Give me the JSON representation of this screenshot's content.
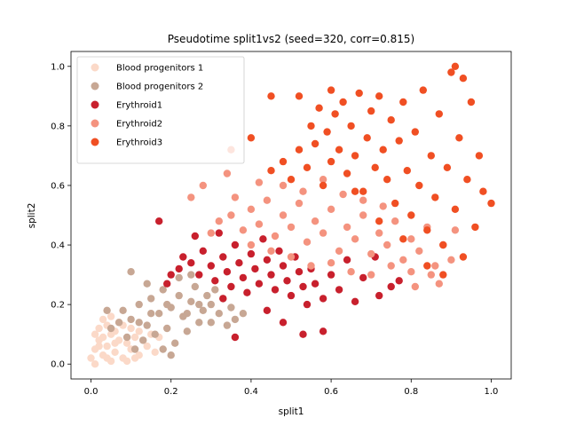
{
  "chart_data": {
    "type": "scatter",
    "title": "Pseudotime split1vs2 (seed=320, corr=0.815)",
    "xlabel": "split1",
    "ylabel": "split2",
    "xlim": [
      -0.05,
      1.05
    ],
    "ylim": [
      -0.05,
      1.05
    ],
    "xticks": [
      "0.0",
      "0.2",
      "0.4",
      "0.6",
      "0.8",
      "1.0"
    ],
    "yticks": [
      "0.0",
      "0.2",
      "0.4",
      "0.6",
      "0.8",
      "1.0"
    ],
    "grid": false,
    "legend_position": "top-left",
    "series": [
      {
        "name": "Blood progenitors 1",
        "color": "#fbd9c8",
        "points": [
          [
            0.0,
            0.02
          ],
          [
            0.01,
            0.05
          ],
          [
            0.02,
            0.08
          ],
          [
            0.03,
            0.03
          ],
          [
            0.04,
            0.06
          ],
          [
            0.05,
            0.1
          ],
          [
            0.06,
            0.04
          ],
          [
            0.07,
            0.08
          ],
          [
            0.02,
            0.12
          ],
          [
            0.08,
            0.13
          ],
          [
            0.05,
            0.01
          ],
          [
            0.09,
            0.07
          ],
          [
            0.03,
            0.15
          ],
          [
            0.06,
            0.11
          ],
          [
            0.1,
            0.05
          ],
          [
            0.11,
            0.09
          ],
          [
            0.04,
            0.02
          ],
          [
            0.07,
            0.14
          ],
          [
            0.12,
            0.03
          ],
          [
            0.01,
            0.1
          ],
          [
            0.13,
            0.08
          ],
          [
            0.08,
            0.02
          ],
          [
            0.02,
            0.06
          ],
          [
            0.1,
            0.12
          ],
          [
            0.14,
            0.06
          ],
          [
            0.05,
            0.16
          ],
          [
            0.09,
            0.01
          ],
          [
            0.15,
            0.1
          ],
          [
            0.03,
            0.09
          ],
          [
            0.06,
            0.07
          ],
          [
            0.12,
            0.11
          ],
          [
            0.01,
            0.0
          ],
          [
            0.16,
            0.04
          ],
          [
            0.04,
            0.13
          ],
          [
            0.11,
            0.02
          ],
          [
            0.17,
            0.09
          ]
        ]
      },
      {
        "name": "Blood progenitors 2",
        "color": "#c7a794",
        "points": [
          [
            0.05,
            0.12
          ],
          [
            0.08,
            0.18
          ],
          [
            0.1,
            0.15
          ],
          [
            0.12,
            0.2
          ],
          [
            0.14,
            0.13
          ],
          [
            0.15,
            0.22
          ],
          [
            0.17,
            0.17
          ],
          [
            0.18,
            0.25
          ],
          [
            0.2,
            0.19
          ],
          [
            0.22,
            0.23
          ],
          [
            0.23,
            0.16
          ],
          [
            0.25,
            0.21
          ],
          [
            0.26,
            0.26
          ],
          [
            0.28,
            0.18
          ],
          [
            0.29,
            0.23
          ],
          [
            0.3,
            0.2
          ],
          [
            0.32,
            0.17
          ],
          [
            0.33,
            0.22
          ],
          [
            0.35,
            0.19
          ],
          [
            0.36,
            0.15
          ],
          [
            0.13,
            0.08
          ],
          [
            0.16,
            0.1
          ],
          [
            0.19,
            0.12
          ],
          [
            0.21,
            0.07
          ],
          [
            0.24,
            0.11
          ],
          [
            0.27,
            0.14
          ],
          [
            0.09,
            0.09
          ],
          [
            0.11,
            0.05
          ],
          [
            0.18,
            0.05
          ],
          [
            0.2,
            0.03
          ],
          [
            0.04,
            0.18
          ],
          [
            0.07,
            0.14
          ],
          [
            0.1,
            0.31
          ],
          [
            0.14,
            0.27
          ],
          [
            0.22,
            0.29
          ],
          [
            0.25,
            0.3
          ],
          [
            0.31,
            0.25
          ],
          [
            0.34,
            0.13
          ],
          [
            0.38,
            0.17
          ],
          [
            0.15,
            0.17
          ],
          [
            0.19,
            0.2
          ],
          [
            0.24,
            0.17
          ],
          [
            0.12,
            0.14
          ],
          [
            0.27,
            0.2
          ],
          [
            0.3,
            0.14
          ]
        ]
      },
      {
        "name": "Erythroid1",
        "color": "#c8202d",
        "points": [
          [
            0.17,
            0.48
          ],
          [
            0.2,
            0.3
          ],
          [
            0.22,
            0.32
          ],
          [
            0.25,
            0.34
          ],
          [
            0.27,
            0.3
          ],
          [
            0.28,
            0.38
          ],
          [
            0.3,
            0.33
          ],
          [
            0.31,
            0.28
          ],
          [
            0.33,
            0.36
          ],
          [
            0.34,
            0.31
          ],
          [
            0.35,
            0.26
          ],
          [
            0.36,
            0.4
          ],
          [
            0.37,
            0.34
          ],
          [
            0.38,
            0.29
          ],
          [
            0.39,
            0.24
          ],
          [
            0.4,
            0.37
          ],
          [
            0.41,
            0.32
          ],
          [
            0.42,
            0.27
          ],
          [
            0.43,
            0.42
          ],
          [
            0.44,
            0.35
          ],
          [
            0.45,
            0.3
          ],
          [
            0.46,
            0.25
          ],
          [
            0.47,
            0.38
          ],
          [
            0.48,
            0.33
          ],
          [
            0.49,
            0.28
          ],
          [
            0.5,
            0.23
          ],
          [
            0.51,
            0.36
          ],
          [
            0.52,
            0.31
          ],
          [
            0.53,
            0.26
          ],
          [
            0.54,
            0.2
          ],
          [
            0.55,
            0.32
          ],
          [
            0.56,
            0.27
          ],
          [
            0.58,
            0.22
          ],
          [
            0.6,
            0.3
          ],
          [
            0.62,
            0.25
          ],
          [
            0.64,
            0.35
          ],
          [
            0.66,
            0.21
          ],
          [
            0.68,
            0.29
          ],
          [
            0.72,
            0.23
          ],
          [
            0.75,
            0.26
          ],
          [
            0.77,
            0.28
          ],
          [
            0.71,
            0.36
          ],
          [
            0.48,
            0.14
          ],
          [
            0.53,
            0.1
          ],
          [
            0.58,
            0.11
          ],
          [
            0.36,
            0.09
          ],
          [
            0.44,
            0.18
          ],
          [
            0.32,
            0.44
          ],
          [
            0.26,
            0.43
          ],
          [
            0.23,
            0.36
          ],
          [
            0.19,
            0.27
          ],
          [
            0.33,
            0.22
          ]
        ]
      },
      {
        "name": "Erythroid2",
        "color": "#f4937f",
        "points": [
          [
            0.3,
            0.44
          ],
          [
            0.32,
            0.48
          ],
          [
            0.35,
            0.5
          ],
          [
            0.38,
            0.45
          ],
          [
            0.4,
            0.52
          ],
          [
            0.42,
            0.47
          ],
          [
            0.44,
            0.55
          ],
          [
            0.46,
            0.43
          ],
          [
            0.48,
            0.5
          ],
          [
            0.5,
            0.46
          ],
          [
            0.52,
            0.54
          ],
          [
            0.54,
            0.41
          ],
          [
            0.56,
            0.48
          ],
          [
            0.58,
            0.44
          ],
          [
            0.6,
            0.52
          ],
          [
            0.62,
            0.38
          ],
          [
            0.64,
            0.46
          ],
          [
            0.66,
            0.42
          ],
          [
            0.68,
            0.5
          ],
          [
            0.7,
            0.37
          ],
          [
            0.72,
            0.44
          ],
          [
            0.74,
            0.4
          ],
          [
            0.76,
            0.48
          ],
          [
            0.78,
            0.35
          ],
          [
            0.8,
            0.42
          ],
          [
            0.82,
            0.38
          ],
          [
            0.84,
            0.46
          ],
          [
            0.86,
            0.33
          ],
          [
            0.88,
            0.4
          ],
          [
            0.5,
            0.36
          ],
          [
            0.55,
            0.33
          ],
          [
            0.6,
            0.34
          ],
          [
            0.65,
            0.31
          ],
          [
            0.7,
            0.3
          ],
          [
            0.75,
            0.33
          ],
          [
            0.8,
            0.31
          ],
          [
            0.85,
            0.3
          ],
          [
            0.9,
            0.35
          ],
          [
            0.45,
            0.38
          ],
          [
            0.4,
            0.4
          ],
          [
            0.36,
            0.56
          ],
          [
            0.42,
            0.61
          ],
          [
            0.48,
            0.6
          ],
          [
            0.53,
            0.58
          ],
          [
            0.58,
            0.62
          ],
          [
            0.63,
            0.57
          ],
          [
            0.68,
            0.55
          ],
          [
            0.73,
            0.53
          ],
          [
            0.25,
            0.56
          ],
          [
            0.28,
            0.6
          ],
          [
            0.34,
            0.64
          ],
          [
            0.81,
            0.26
          ],
          [
            0.87,
            0.27
          ],
          [
            0.91,
            0.45
          ]
        ]
      },
      {
        "name": "Erythroid3",
        "color": "#f04f23",
        "points": [
          [
            0.45,
            0.65
          ],
          [
            0.48,
            0.68
          ],
          [
            0.5,
            0.62
          ],
          [
            0.52,
            0.72
          ],
          [
            0.54,
            0.66
          ],
          [
            0.55,
            0.8
          ],
          [
            0.56,
            0.74
          ],
          [
            0.57,
            0.86
          ],
          [
            0.58,
            0.6
          ],
          [
            0.59,
            0.78
          ],
          [
            0.6,
            0.68
          ],
          [
            0.61,
            0.84
          ],
          [
            0.62,
            0.72
          ],
          [
            0.63,
            0.88
          ],
          [
            0.64,
            0.64
          ],
          [
            0.65,
            0.8
          ],
          [
            0.66,
            0.7
          ],
          [
            0.67,
            0.91
          ],
          [
            0.68,
            0.58
          ],
          [
            0.69,
            0.76
          ],
          [
            0.7,
            0.85
          ],
          [
            0.71,
            0.66
          ],
          [
            0.72,
            0.9
          ],
          [
            0.73,
            0.72
          ],
          [
            0.74,
            0.62
          ],
          [
            0.75,
            0.82
          ],
          [
            0.76,
            0.54
          ],
          [
            0.77,
            0.75
          ],
          [
            0.78,
            0.88
          ],
          [
            0.79,
            0.65
          ],
          [
            0.8,
            0.5
          ],
          [
            0.81,
            0.78
          ],
          [
            0.82,
            0.6
          ],
          [
            0.83,
            0.92
          ],
          [
            0.84,
            0.45
          ],
          [
            0.85,
            0.7
          ],
          [
            0.86,
            0.56
          ],
          [
            0.87,
            0.84
          ],
          [
            0.88,
            0.4
          ],
          [
            0.89,
            0.66
          ],
          [
            0.9,
            0.98
          ],
          [
            0.91,
            0.52
          ],
          [
            0.92,
            0.76
          ],
          [
            0.93,
            0.36
          ],
          [
            0.94,
            0.62
          ],
          [
            0.95,
            0.88
          ],
          [
            0.96,
            0.46
          ],
          [
            0.97,
            0.7
          ],
          [
            0.98,
            0.58
          ],
          [
            1.0,
            0.54
          ],
          [
            0.45,
            0.9
          ],
          [
            0.4,
            0.76
          ],
          [
            0.35,
            0.72
          ],
          [
            0.52,
            0.9
          ],
          [
            0.6,
            0.92
          ],
          [
            0.66,
            0.58
          ],
          [
            0.72,
            0.48
          ],
          [
            0.78,
            0.42
          ],
          [
            0.84,
            0.33
          ],
          [
            0.88,
            0.3
          ],
          [
            0.91,
            1.0
          ],
          [
            0.93,
            0.96
          ]
        ]
      }
    ]
  }
}
